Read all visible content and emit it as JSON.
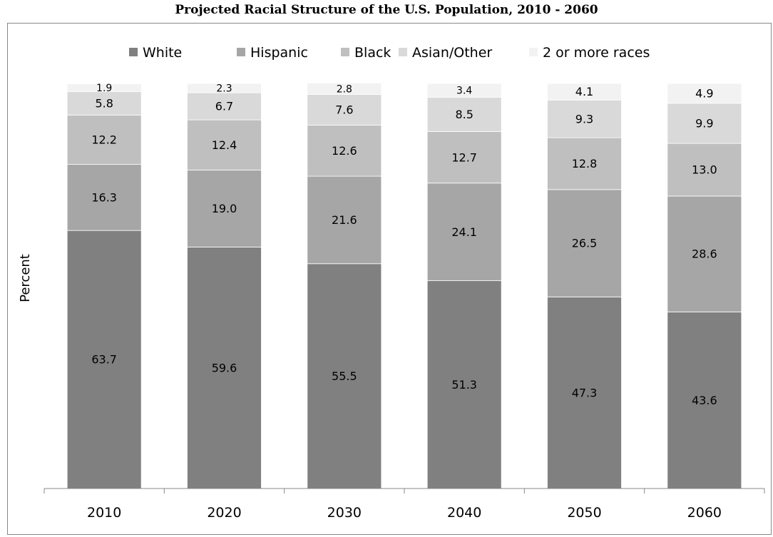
{
  "chart_data": {
    "type": "bar",
    "stacked": true,
    "title": "Projected Racial Structure of the U.S. Population, 2010 - 2060",
    "ylabel": "Percent",
    "xlabel": "",
    "ylim": [
      0,
      100
    ],
    "grid": false,
    "legend_position": "top",
    "categories": [
      "2010",
      "2020",
      "2030",
      "2040",
      "2050",
      "2060"
    ],
    "series": [
      {
        "name": "White",
        "color": "#808080",
        "values": [
          63.7,
          59.6,
          55.5,
          51.3,
          47.3,
          43.6
        ]
      },
      {
        "name": "Hispanic",
        "color": "#a6a6a6",
        "values": [
          16.3,
          19.0,
          21.6,
          24.1,
          26.5,
          28.6
        ]
      },
      {
        "name": "Black",
        "color": "#bfbfbf",
        "values": [
          12.2,
          12.4,
          12.6,
          12.7,
          12.8,
          13.0
        ]
      },
      {
        "name": "Asian/Other",
        "color": "#d9d9d9",
        "values": [
          5.8,
          6.7,
          7.6,
          8.5,
          9.3,
          9.9
        ]
      },
      {
        "name": "2 or more races",
        "color": "#f2f2f2",
        "values": [
          1.9,
          2.3,
          2.8,
          3.4,
          4.1,
          4.9
        ]
      }
    ]
  }
}
